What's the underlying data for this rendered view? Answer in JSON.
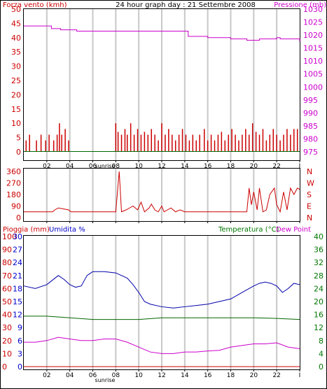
{
  "header": {
    "left_title": "Forza vento (kmh)",
    "center_title": "24 hour graph day : 21 Settembre 2008",
    "right_title": "Pressione (mb)"
  },
  "bottom_header": {
    "rain_label": "Pioggia (mm)",
    "humidity_label": "Umidita %",
    "temperature_label": "Temperatura (°C)",
    "dewpoint_label": "Dew Point"
  },
  "direction_labels": [
    "N",
    "W",
    "S",
    "E",
    "N"
  ],
  "sunrise_label": "sunrise",
  "colors": {
    "wind": "#cc0000",
    "pressure": "#cc00cc",
    "direction": "#cc0000",
    "humidity": "#0000aa",
    "temperature": "#006600",
    "dewpoint": "#cc00cc",
    "rain": "#cc0000",
    "axis_left": "#cc0000",
    "axis_blue": "#0000cc",
    "axis_right": "#007700",
    "grid": "#c8c8c8"
  },
  "chart_data": [
    {
      "type": "line",
      "name": "wind_pressure",
      "x_tick_labels": [
        "02",
        "04",
        "06",
        "08",
        "10",
        "12",
        "14",
        "16",
        "18",
        "20",
        "22",
        "I"
      ],
      "y_left_ticks": [
        0,
        5,
        10,
        15,
        20,
        25,
        30,
        35,
        40,
        45,
        50
      ],
      "y_left_range": [
        0,
        50
      ],
      "y_right_ticks": [
        975,
        980,
        985,
        990,
        995,
        1000,
        1005,
        1010,
        1015,
        1020,
        1025,
        1030
      ],
      "y_right_range": [
        975,
        1030
      ],
      "series": [
        {
          "name": "Pressione (mb)",
          "axis": "right",
          "x": [
            0,
            2.3,
            2.4,
            3.0,
            3.2,
            4.6,
            8.0,
            14.0,
            14.3,
            16.0,
            18.0,
            19.0,
            19.4,
            20.5,
            21.5,
            22.0,
            22.3,
            23.0,
            24.0
          ],
          "values": [
            1023.5,
            1023.5,
            1022.5,
            1022.5,
            1022.0,
            1021.5,
            1021.5,
            1021.5,
            1019.5,
            1019.0,
            1018.5,
            1018.5,
            1018.0,
            1018.5,
            1018.5,
            1019.0,
            1018.5,
            1018.5,
            1017.5
          ]
        }
      ],
      "wind_gusts": {
        "hours": [
          0.2,
          0.5,
          1.1,
          1.5,
          1.9,
          2.2,
          2.6,
          2.9,
          3.1,
          3.3,
          3.6,
          3.9,
          8.0,
          8.2,
          8.5,
          8.8,
          9.0,
          9.3,
          9.6,
          9.9,
          10.2,
          10.5,
          10.8,
          11.1,
          11.4,
          11.7,
          12.0,
          12.3,
          12.6,
          12.9,
          13.2,
          13.5,
          13.8,
          14.1,
          14.4,
          14.7,
          15.0,
          15.3,
          15.7,
          16.0,
          16.3,
          16.6,
          16.9,
          17.2,
          17.5,
          17.8,
          18.1,
          18.4,
          18.7,
          19.0,
          19.3,
          19.6,
          19.9,
          20.2,
          20.5,
          20.8,
          21.1,
          21.4,
          21.7,
          22.0,
          22.3,
          22.6,
          22.9,
          23.2,
          23.5,
          23.8
        ],
        "values": [
          4,
          6,
          4,
          6,
          4,
          6,
          4,
          6,
          10,
          6,
          8,
          4,
          10,
          7,
          6,
          8,
          6,
          10,
          6,
          8,
          6,
          7,
          6,
          8,
          6,
          4,
          10,
          6,
          8,
          6,
          4,
          6,
          8,
          6,
          4,
          6,
          4,
          6,
          8,
          4,
          6,
          4,
          6,
          7,
          4,
          6,
          8,
          6,
          4,
          6,
          8,
          6,
          10,
          7,
          6,
          8,
          4,
          6,
          8,
          6,
          4,
          6,
          8,
          6,
          8,
          8
        ]
      }
    },
    {
      "type": "line",
      "name": "wind_direction",
      "y_left_ticks": [
        0,
        90,
        180,
        270,
        360
      ],
      "y_left_range": [
        0,
        360
      ],
      "series": [
        {
          "name": "Direction",
          "x": [
            0,
            2.5,
            2.7,
            3.0,
            3.9,
            4.1,
            8.0,
            8.3,
            8.5,
            8.9,
            9.2,
            9.5,
            9.9,
            10.2,
            10.5,
            10.9,
            11.1,
            11.4,
            11.7,
            12.0,
            12.2,
            12.5,
            12.8,
            13.2,
            13.6,
            14.0,
            16.0,
            18.0,
            19.4,
            19.6,
            19.8,
            20.0,
            20.3,
            20.5,
            20.8,
            21.1,
            21.4,
            21.8,
            22.0,
            22.3,
            22.6,
            22.9,
            23.2,
            23.5,
            23.8,
            24.0
          ],
          "values": [
            45,
            45,
            60,
            75,
            60,
            45,
            45,
            360,
            45,
            60,
            75,
            90,
            60,
            120,
            45,
            75,
            105,
            60,
            45,
            90,
            45,
            60,
            75,
            45,
            60,
            45,
            45,
            45,
            45,
            230,
            100,
            200,
            60,
            230,
            45,
            60,
            180,
            230,
            100,
            45,
            200,
            60,
            230,
            180,
            230,
            220
          ]
        }
      ]
    },
    {
      "type": "line",
      "name": "rain_humidity_temp",
      "y_left_ticks": [
        0,
        10,
        20,
        30,
        40,
        50,
        60,
        70,
        80,
        90,
        100
      ],
      "y_left_range": [
        0,
        100
      ],
      "y_blue_ticks": [
        0,
        3,
        6,
        9,
        12,
        15,
        18,
        21,
        24,
        27,
        30
      ],
      "y_blue_range": [
        0,
        30
      ],
      "y_right_ticks": [
        0,
        4,
        8,
        12,
        16,
        20,
        24,
        28,
        32,
        36,
        40
      ],
      "y_right_range": [
        0,
        40
      ],
      "series": [
        {
          "name": "Umidita %",
          "axis": "left",
          "x": [
            0,
            1,
            2,
            3,
            3.5,
            4,
            4.5,
            5,
            5.5,
            6,
            7,
            8,
            8.5,
            9,
            9.5,
            10,
            10.5,
            11,
            12,
            13,
            14,
            15,
            16,
            17,
            18,
            19,
            20,
            20.5,
            21,
            21.5,
            22,
            22.5,
            23,
            23.5,
            24
          ],
          "values": [
            62,
            60,
            63,
            70,
            67,
            63,
            61,
            62,
            70,
            73,
            73,
            72,
            70,
            68,
            63,
            57,
            50,
            48,
            46,
            45,
            46,
            47,
            48,
            50,
            52,
            57,
            62,
            64,
            65,
            64,
            62,
            57,
            60,
            64,
            63
          ]
        },
        {
          "name": "Temperatura (°C)",
          "axis": "right",
          "x": [
            0,
            2,
            4,
            6,
            8,
            10,
            12,
            14,
            16,
            18,
            20,
            22,
            24
          ],
          "values": [
            15.5,
            15.5,
            15.0,
            14.5,
            14.5,
            14.5,
            15.0,
            15.0,
            15.0,
            15.0,
            15.0,
            14.8,
            14.5
          ]
        },
        {
          "name": "Dew Point",
          "axis": "right",
          "x": [
            0,
            1,
            2,
            3,
            4,
            5,
            6,
            7,
            8,
            9,
            10,
            11,
            12,
            13,
            14,
            15,
            16,
            17,
            18,
            19,
            20,
            21,
            22,
            23,
            24
          ],
          "values": [
            7.5,
            7.5,
            8.0,
            9.0,
            8.5,
            8.0,
            8.0,
            8.5,
            8.5,
            7.5,
            6.0,
            4.5,
            4.0,
            4.0,
            4.5,
            4.5,
            4.8,
            5.0,
            6.0,
            6.5,
            7.0,
            7.0,
            7.3,
            6.0,
            5.5
          ]
        },
        {
          "name": "Pioggia (mm)",
          "axis": "left",
          "x": [
            0,
            24
          ],
          "values": [
            0,
            0
          ]
        }
      ]
    }
  ]
}
